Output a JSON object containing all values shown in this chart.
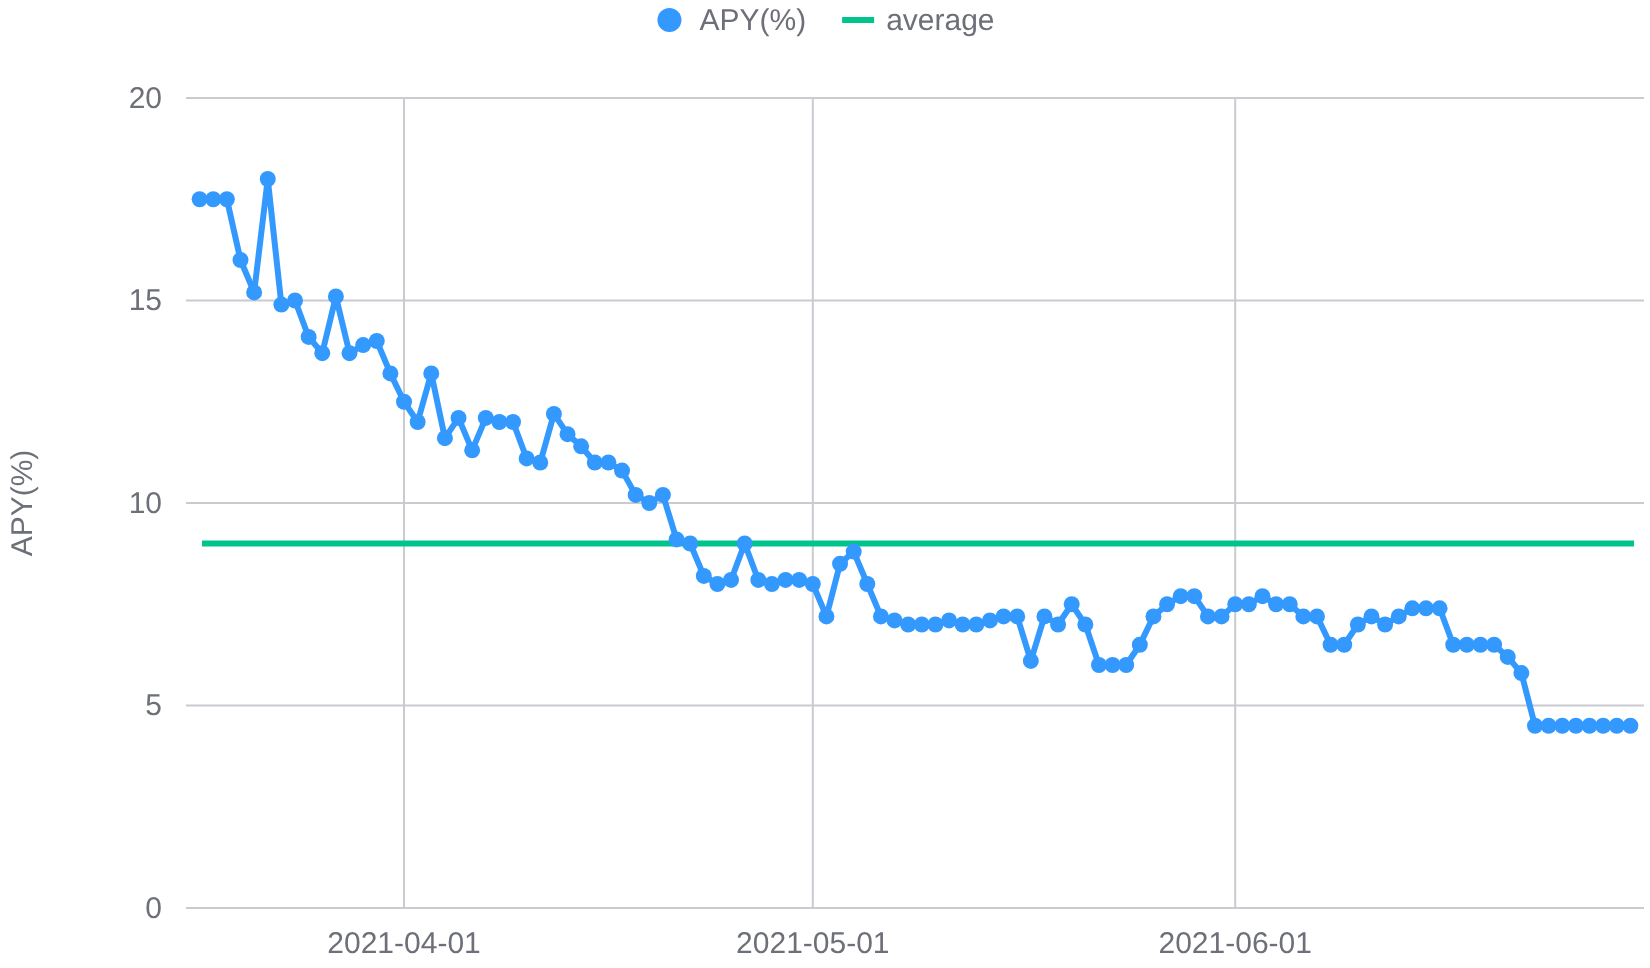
{
  "chart_data": {
    "type": "line",
    "ylabel": "APY(%)",
    "xlim": [
      "2021-03-16",
      "2021-07-01"
    ],
    "xticks": [
      "2021-04-01",
      "2021-05-01",
      "2021-06-01"
    ],
    "ylim": [
      0,
      20
    ],
    "yticks": [
      0,
      5,
      10,
      15,
      20
    ],
    "grid": true,
    "legend": "top",
    "marker": "circle",
    "series": [
      {
        "name": "APY(%)",
        "color": "#3399ff",
        "values": [
          17.5,
          17.5,
          17.5,
          16.0,
          15.2,
          18.0,
          14.9,
          15.0,
          14.1,
          13.7,
          15.1,
          13.7,
          13.9,
          14.0,
          13.2,
          12.5,
          12.0,
          13.2,
          11.6,
          12.1,
          11.3,
          12.1,
          12.0,
          12.0,
          11.1,
          11.0,
          12.2,
          11.7,
          11.4,
          11.0,
          11.0,
          10.8,
          10.2,
          10.0,
          10.2,
          9.1,
          9.0,
          8.2,
          8.0,
          8.1,
          9.0,
          8.1,
          8.0,
          8.1,
          8.1,
          8.0,
          7.2,
          8.5,
          8.8,
          8.0,
          7.2,
          7.1,
          7.0,
          7.0,
          7.0,
          7.1,
          7.0,
          7.0,
          7.1,
          7.2,
          7.2,
          6.1,
          7.2,
          7.0,
          7.5,
          7.0,
          6.0,
          6.0,
          6.0,
          6.5,
          7.2,
          7.5,
          7.7,
          7.7,
          7.2,
          7.2,
          7.5,
          7.5,
          7.7,
          7.5,
          7.5,
          7.2,
          7.2,
          6.5,
          6.5,
          7.0,
          7.2,
          7.0,
          7.2,
          7.4,
          7.4,
          7.4,
          6.5,
          6.5,
          6.5,
          6.5,
          6.2,
          5.8,
          4.5,
          4.5,
          4.5,
          4.5,
          4.5,
          4.5,
          4.5,
          4.5
        ],
        "x": [
          "2021-03-17",
          "2021-03-18",
          "2021-03-19",
          "2021-03-20",
          "2021-03-21",
          "2021-03-22",
          "2021-03-23",
          "2021-03-24",
          "2021-03-25",
          "2021-03-26",
          "2021-03-27",
          "2021-03-28",
          "2021-03-29",
          "2021-03-30",
          "2021-03-31",
          "2021-04-01",
          "2021-04-02",
          "2021-04-03",
          "2021-04-04",
          "2021-04-05",
          "2021-04-06",
          "2021-04-07",
          "2021-04-08",
          "2021-04-09",
          "2021-04-10",
          "2021-04-11",
          "2021-04-12",
          "2021-04-13",
          "2021-04-14",
          "2021-04-15",
          "2021-04-16",
          "2021-04-17",
          "2021-04-18",
          "2021-04-19",
          "2021-04-20",
          "2021-04-21",
          "2021-04-22",
          "2021-04-23",
          "2021-04-24",
          "2021-04-25",
          "2021-04-26",
          "2021-04-27",
          "2021-04-28",
          "2021-04-29",
          "2021-04-30",
          "2021-05-01",
          "2021-05-02",
          "2021-05-03",
          "2021-05-04",
          "2021-05-05",
          "2021-05-06",
          "2021-05-07",
          "2021-05-08",
          "2021-05-09",
          "2021-05-10",
          "2021-05-11",
          "2021-05-12",
          "2021-05-13",
          "2021-05-14",
          "2021-05-15",
          "2021-05-16",
          "2021-05-17",
          "2021-05-18",
          "2021-05-19",
          "2021-05-20",
          "2021-05-21",
          "2021-05-22",
          "2021-05-23",
          "2021-05-24",
          "2021-05-25",
          "2021-05-26",
          "2021-05-27",
          "2021-05-28",
          "2021-05-29",
          "2021-05-30",
          "2021-05-31",
          "2021-06-01",
          "2021-06-02",
          "2021-06-03",
          "2021-06-04",
          "2021-06-05",
          "2021-06-06",
          "2021-06-07",
          "2021-06-08",
          "2021-06-09",
          "2021-06-10",
          "2021-06-11",
          "2021-06-12",
          "2021-06-13",
          "2021-06-14",
          "2021-06-15",
          "2021-06-16",
          "2021-06-17",
          "2021-06-18",
          "2021-06-19",
          "2021-06-20",
          "2021-06-21",
          "2021-06-22",
          "2021-06-23",
          "2021-06-24",
          "2021-06-25",
          "2021-06-26",
          "2021-06-27",
          "2021-06-28",
          "2021-06-29",
          "2021-06-30"
        ]
      }
    ],
    "ref_lines": [
      {
        "axis": "y",
        "value": 9,
        "label": "average",
        "color": "#00c48c"
      }
    ]
  }
}
